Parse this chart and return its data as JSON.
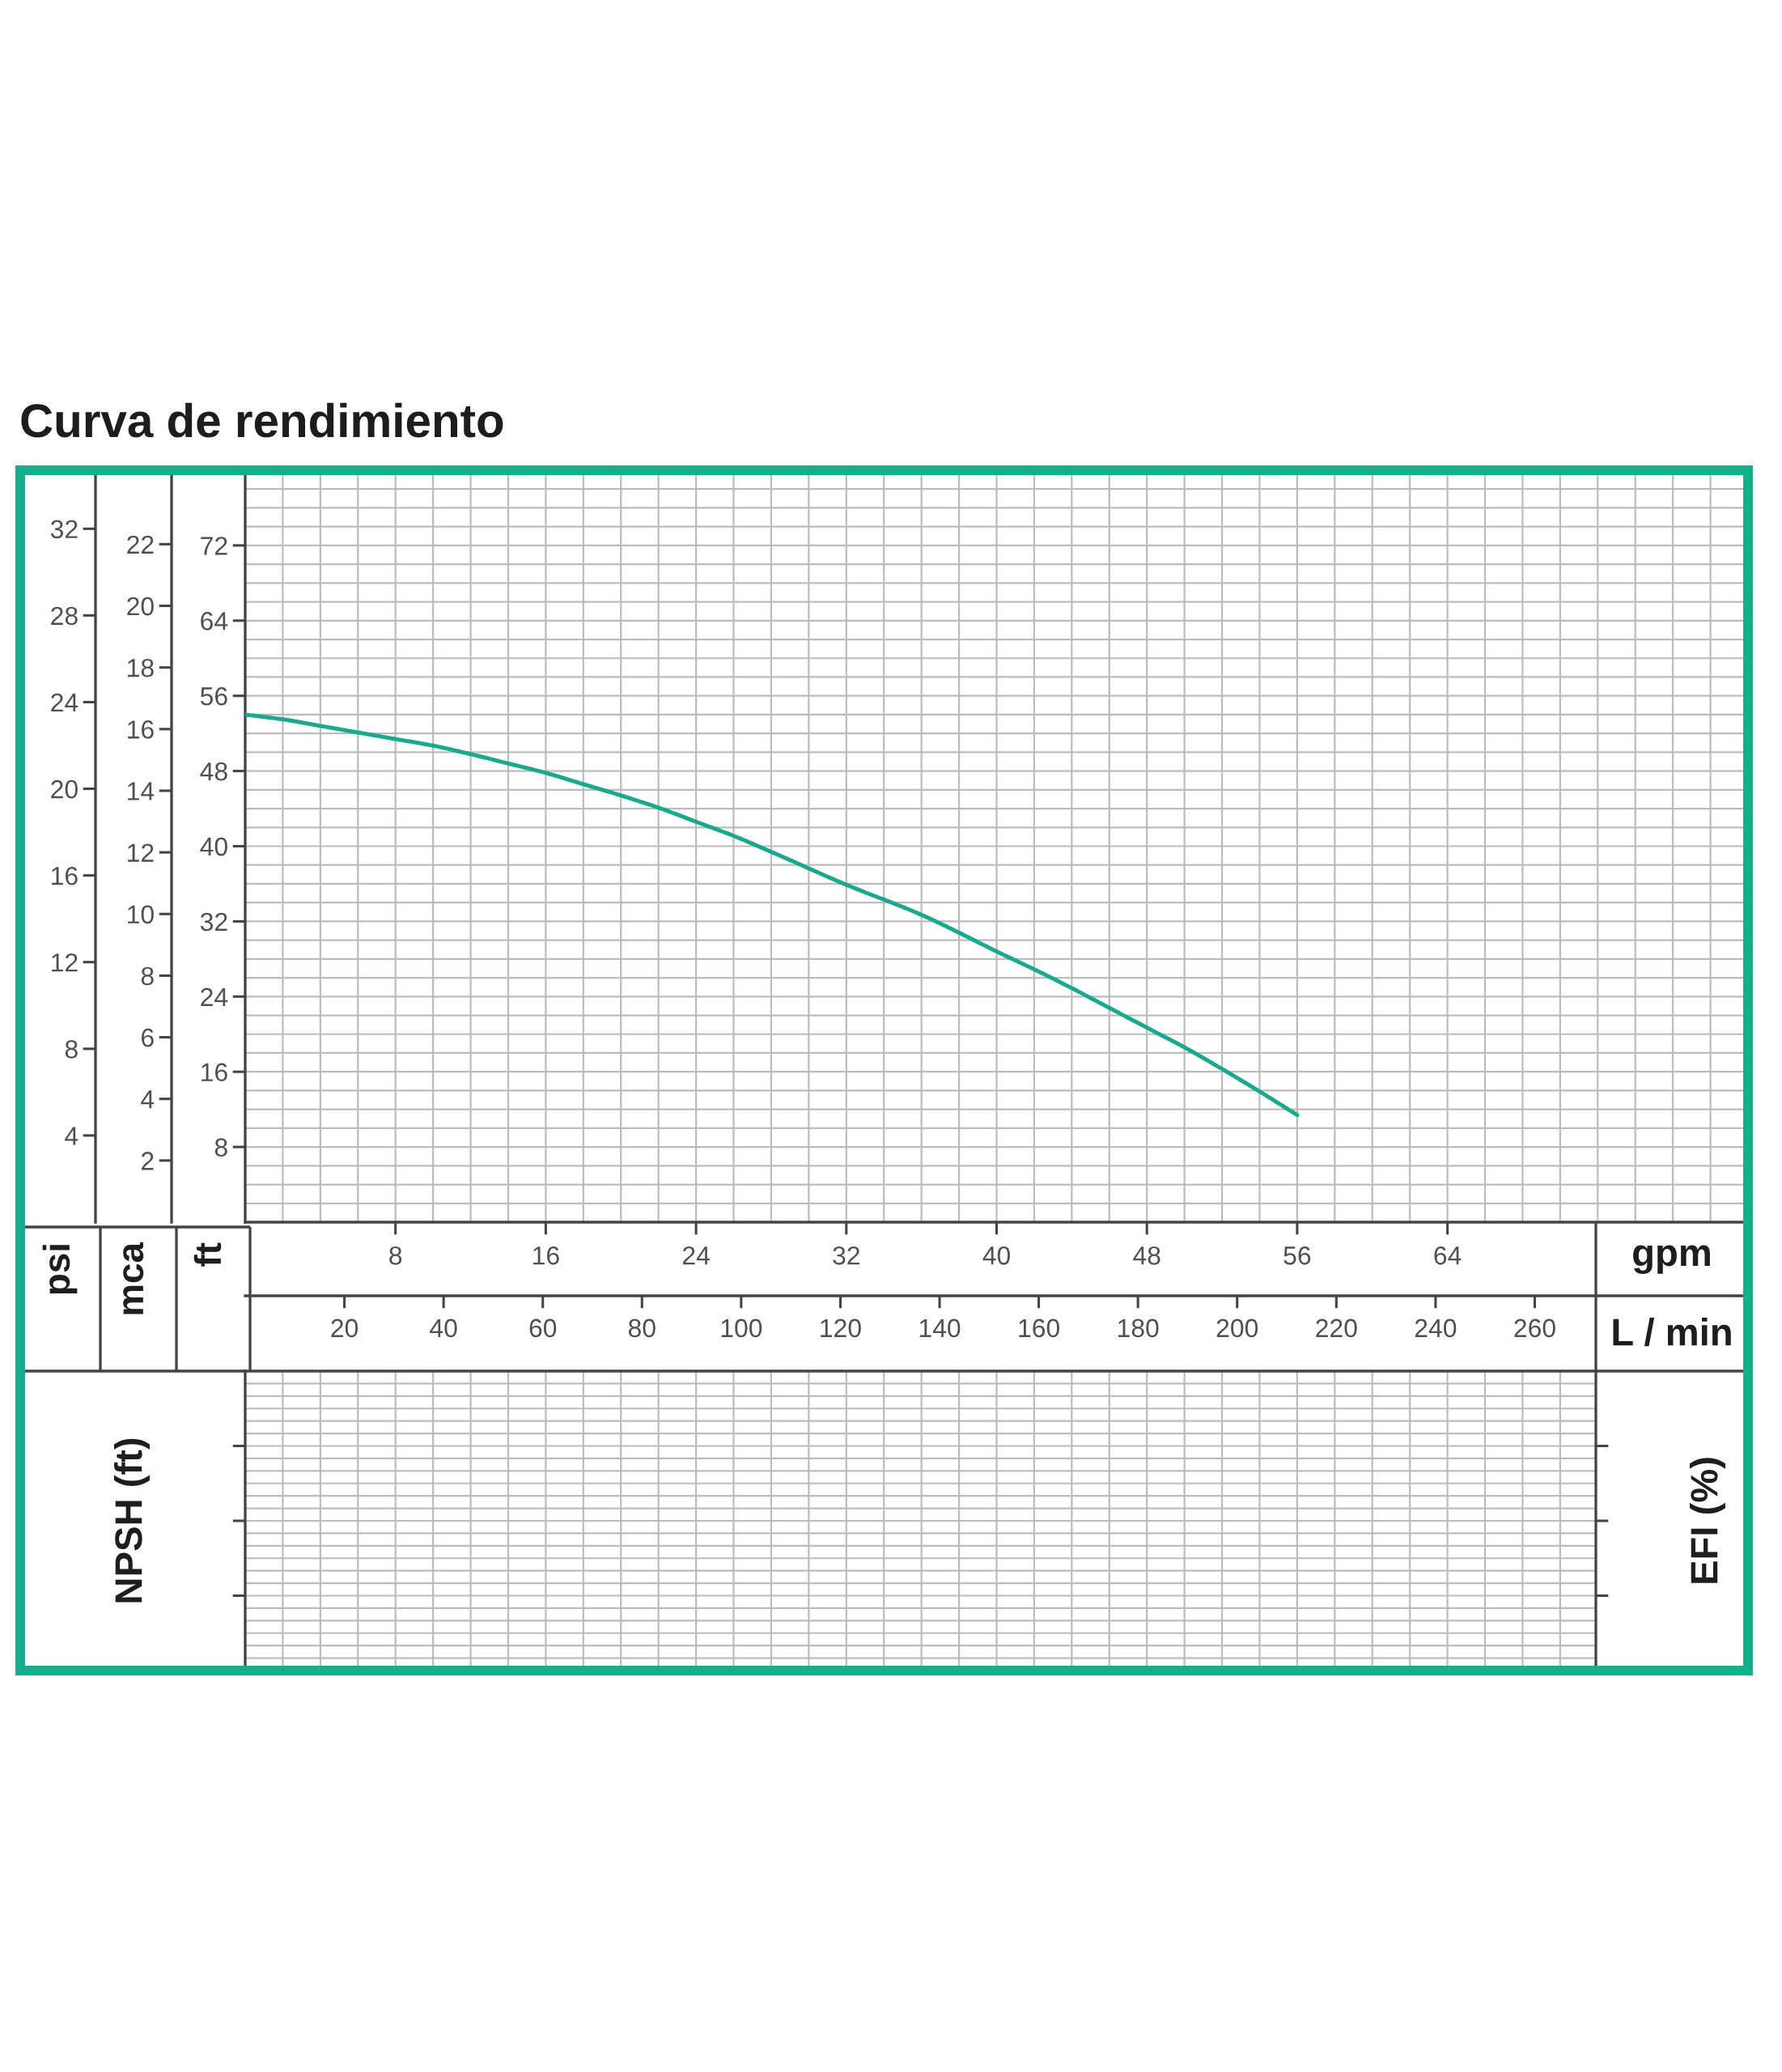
{
  "chart_data": [
    {
      "type": "line",
      "title": "Curva de rendimiento",
      "xlabel": "gpm",
      "x2label": "L / min",
      "ylabel": "ft",
      "y2label": "mca",
      "y3label": "psi",
      "xlim": [
        0,
        80
      ],
      "xticks": [
        8,
        16,
        24,
        32,
        40,
        48,
        56,
        64
      ],
      "x2lim": [
        0,
        303
      ],
      "x2ticks": [
        20,
        40,
        60,
        80,
        100,
        120,
        140,
        160,
        180,
        200,
        220,
        240,
        260
      ],
      "ylim": [
        0,
        80
      ],
      "yticks": [
        8,
        16,
        24,
        32,
        40,
        48,
        56,
        64,
        72
      ],
      "y2lim": [
        0,
        24.4
      ],
      "y2ticks": [
        2,
        4,
        6,
        8,
        10,
        12,
        14,
        16,
        18,
        20,
        22
      ],
      "y3lim": [
        0,
        34.7
      ],
      "y3ticks": [
        4,
        8,
        12,
        16,
        20,
        24,
        28,
        32
      ],
      "grid": true,
      "series": [
        {
          "color": "#1aa98c",
          "x": [
            0,
            2,
            4,
            6,
            8,
            10,
            12,
            14,
            16,
            18,
            20,
            22,
            24,
            26,
            28,
            32,
            36,
            38,
            40,
            42,
            44,
            46,
            48,
            50,
            52,
            54,
            56
          ],
          "values": [
            54.0,
            53.5,
            52.8,
            52.1,
            51.4,
            50.7,
            49.8,
            48.8,
            47.8,
            46.6,
            45.4,
            44.1,
            42.6,
            41.1,
            39.4,
            35.9,
            32.7,
            30.8,
            28.8,
            26.9,
            24.9,
            22.8,
            20.7,
            18.6,
            16.3,
            13.9,
            11.4
          ]
        }
      ]
    },
    {
      "type": "other",
      "ylabel": "NPSH (ft)",
      "y2label": "EFI (%)"
    }
  ]
}
